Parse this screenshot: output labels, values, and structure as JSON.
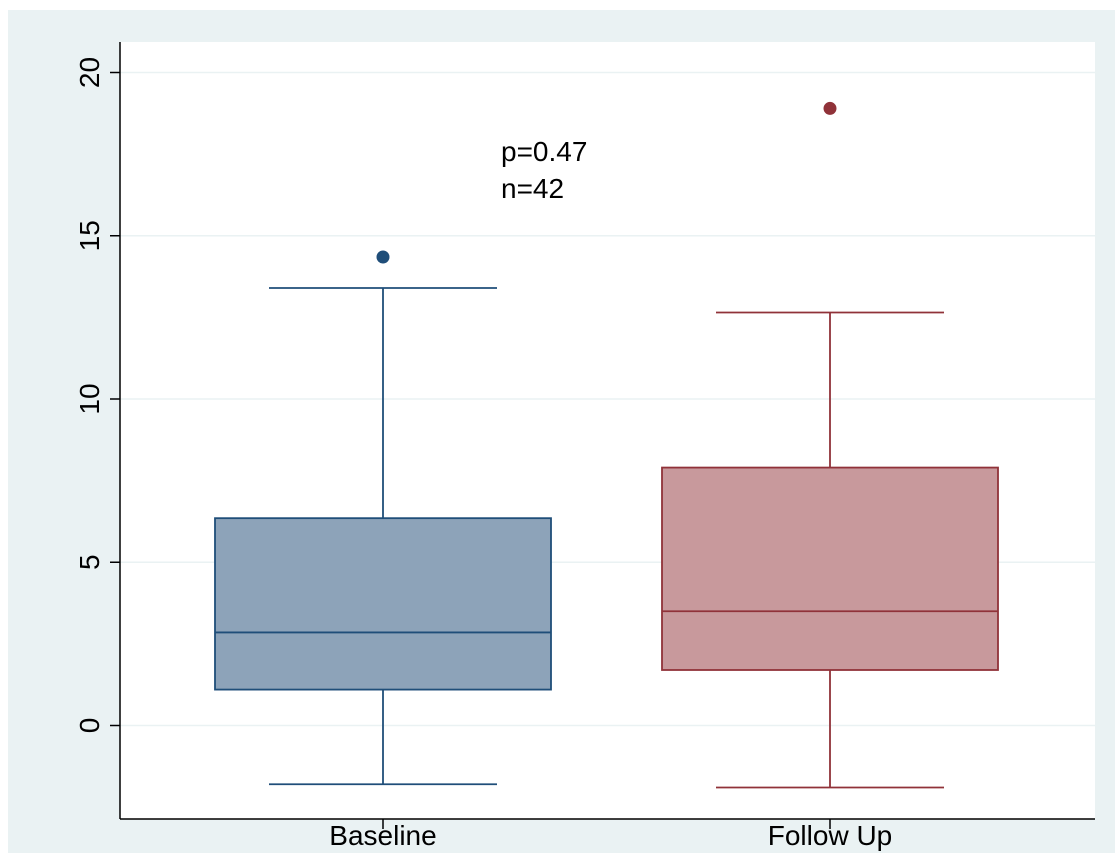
{
  "chart_data": {
    "type": "box",
    "title": "",
    "xlabel": "",
    "ylabel": "",
    "ylim": [
      -2.8,
      21.0
    ],
    "yticks": [
      0,
      5,
      10,
      15,
      20
    ],
    "ytick_labels": [
      "0",
      "5",
      "10",
      "15",
      "20"
    ],
    "grid": true,
    "legend": "none",
    "categories": [
      "Baseline",
      "Follow Up"
    ],
    "boxes": [
      {
        "category": "Baseline",
        "whisker_low": -1.8,
        "q1": 1.1,
        "median": 2.85,
        "q3": 6.35,
        "whisker_high": 13.4,
        "outliers": [
          14.35
        ],
        "fill": "#8da3b9",
        "stroke": "#1f4e79"
      },
      {
        "category": "Follow Up",
        "whisker_low": -1.9,
        "q1": 1.7,
        "median": 3.5,
        "q3": 7.9,
        "whisker_high": 12.65,
        "outliers": [
          18.9
        ],
        "fill": "#c8999c",
        "stroke": "#903239"
      }
    ],
    "annotations": [
      "p=0.47",
      "n=42"
    ]
  }
}
